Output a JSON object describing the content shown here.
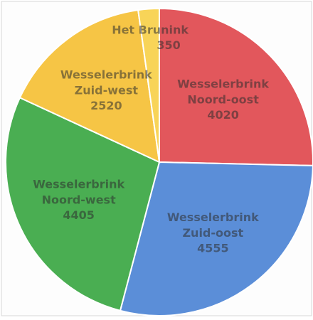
{
  "chart_data": {
    "type": "pie",
    "categories": [
      "Wesselerbrink\nNoord-oost",
      "Wesselerbrink\nZuid-oost",
      "Wesselerbrink\nNoord-west",
      "Wesselerbrink\nZuid-west",
      "Het Brunink"
    ],
    "values": [
      4020,
      4555,
      4405,
      2520,
      350
    ],
    "colors": [
      "#e2575c",
      "#5b8ed8",
      "#4aae52",
      "#f6c545",
      "#f8d458"
    ]
  }
}
